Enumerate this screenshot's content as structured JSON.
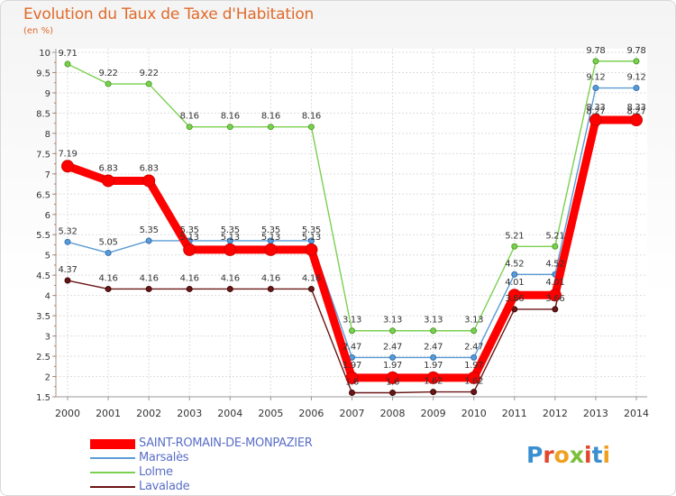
{
  "chart_data": {
    "type": "line",
    "title": "Evolution du Taux de Taxe d'Habitation",
    "subtitle": "(en %)",
    "xlabel": "",
    "ylabel": "",
    "ylim": [
      1.5,
      10
    ],
    "yticks": [
      "1.5",
      "2",
      "2.5",
      "3",
      "3.5",
      "4",
      "4.5",
      "5",
      "5.5",
      "6",
      "6.5",
      "7",
      "7.5",
      "8",
      "8.5",
      "9",
      "9.5",
      "10"
    ],
    "categories": [
      "2000",
      "2001",
      "2002",
      "2003",
      "2004",
      "2005",
      "2006",
      "2007",
      "2008",
      "2009",
      "2010",
      "2011",
      "2012",
      "2013",
      "2014"
    ],
    "series": [
      {
        "name": "SAINT-ROMAIN-DE-MONPAZIER",
        "color": "#ff0000",
        "values": [
          7.19,
          6.83,
          6.83,
          5.13,
          5.13,
          5.13,
          5.13,
          1.97,
          1.97,
          1.97,
          1.97,
          4.01,
          4.01,
          8.33,
          8.33
        ],
        "labels": [
          "7.19",
          "6.83",
          "6.83",
          "5.13",
          "5.13",
          "5.13",
          "5.13",
          "1.97",
          "1.97",
          "1.97",
          "1.97",
          "4.01",
          "4.01",
          "8.33",
          "8.33"
        ]
      },
      {
        "name": "Marsalès",
        "color": "#5b9bd5",
        "values": [
          5.32,
          5.05,
          5.35,
          5.35,
          5.35,
          5.35,
          5.35,
          2.47,
          2.47,
          2.47,
          2.47,
          4.52,
          4.52,
          9.12,
          9.12
        ],
        "labels": [
          "5.32",
          "5.05",
          "5.35",
          "5.35",
          "5.35",
          "5.35",
          "5.35",
          "2.47",
          "2.47",
          "2.47",
          "2.47",
          "4.52",
          "4.52",
          "9.12",
          "9.12"
        ]
      },
      {
        "name": "Lolme",
        "color": "#7bd050",
        "values": [
          9.71,
          9.22,
          9.22,
          8.16,
          8.16,
          8.16,
          8.16,
          3.13,
          3.13,
          3.13,
          3.13,
          5.21,
          5.21,
          9.78,
          9.78
        ],
        "labels": [
          "9.71",
          "9.22",
          "9.22",
          "8.16",
          "8.16",
          "8.16",
          "8.16",
          "3.13",
          "3.13",
          "3.13",
          "3.13",
          "5.21",
          "5.21",
          "9.78",
          "9.78"
        ]
      },
      {
        "name": "Lavalade",
        "color": "#6b1515",
        "values": [
          4.37,
          4.16,
          4.16,
          4.16,
          4.16,
          4.16,
          4.16,
          1.6,
          1.6,
          1.62,
          1.62,
          3.66,
          3.66,
          8.27,
          8.27
        ],
        "labels": [
          "4.37",
          "4.16",
          "4.16",
          "4.16",
          "4.16",
          "4.16",
          "4.16",
          "1.6",
          "1.6",
          "1.62",
          "1.62",
          "3.66",
          "3.66",
          "8.27",
          "8.27"
        ]
      }
    ]
  },
  "legend": [
    {
      "label": "SAINT-ROMAIN-DE-MONPAZIER",
      "color": "#ff0000"
    },
    {
      "label": "Marsalès",
      "color": "#5b9bd5"
    },
    {
      "label": "Lolme",
      "color": "#7bd050"
    },
    {
      "label": "Lavalade",
      "color": "#6b1515"
    }
  ],
  "logo": {
    "letters": [
      {
        "ch": "P",
        "color": "#3a8fd0"
      },
      {
        "ch": "r",
        "color": "#e2462b"
      },
      {
        "ch": "o",
        "color": "#f0a020"
      },
      {
        "ch": "x",
        "color": "#7bbf3a"
      },
      {
        "ch": "i",
        "color": "#e2462b"
      },
      {
        "ch": "t",
        "color": "#3a8fd0"
      },
      {
        "ch": "i",
        "color": "#f0a020"
      }
    ]
  }
}
